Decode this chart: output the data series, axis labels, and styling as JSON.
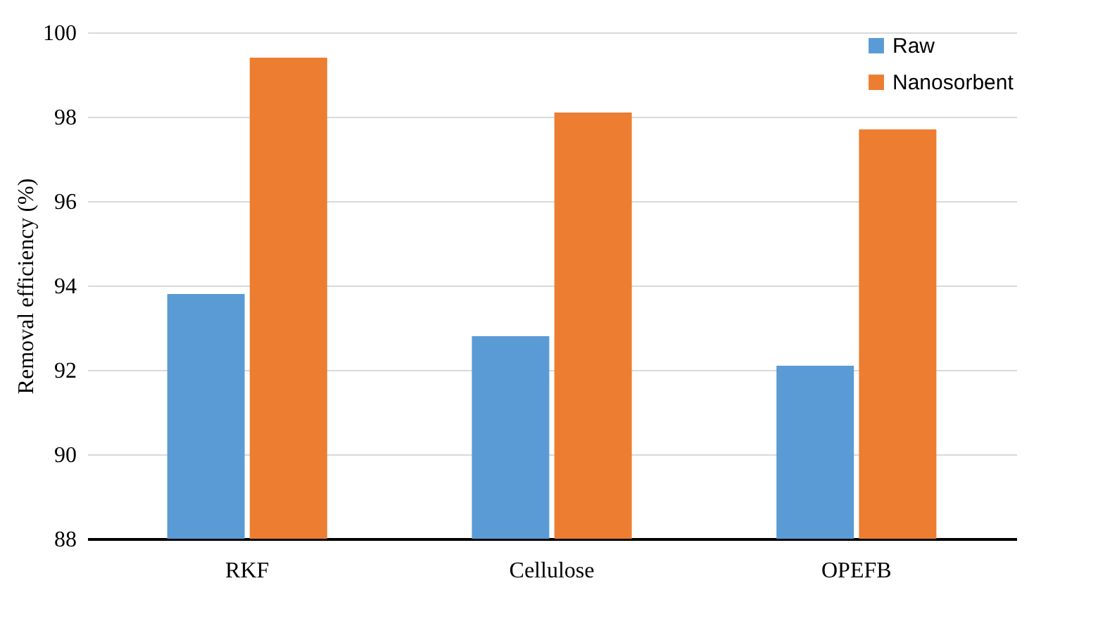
{
  "chart_data": {
    "type": "bar",
    "ylabel": "Removal efficiency (%)",
    "categories": [
      "RKF",
      "Cellulose",
      "OPEFB"
    ],
    "series": [
      {
        "name": "Raw",
        "color": "#5b9bd5",
        "values": [
          93.8,
          92.8,
          92.1
        ]
      },
      {
        "name": "Nanosorbent",
        "color": "#ed7d31",
        "values": [
          99.4,
          98.1,
          97.7
        ]
      }
    ],
    "ylim": [
      88,
      100
    ],
    "yticks": [
      88,
      90,
      92,
      94,
      96,
      98,
      100
    ],
    "grid": "y",
    "legend": "top right"
  }
}
